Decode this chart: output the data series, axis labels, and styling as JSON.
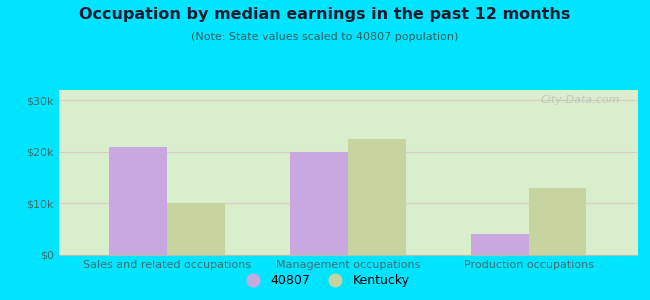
{
  "title": "Occupation by median earnings in the past 12 months",
  "subtitle": "(Note: State values scaled to 40807 population)",
  "categories": [
    "Sales and related occupations",
    "Management occupations",
    "Production occupations"
  ],
  "values_40807": [
    21000,
    20000,
    4000
  ],
  "values_kentucky": [
    10000,
    22500,
    13000
  ],
  "color_40807": "#c9a8e0",
  "color_kentucky": "#c8d4a0",
  "ylim": [
    0,
    32000
  ],
  "yticks": [
    0,
    10000,
    20000,
    30000
  ],
  "ytick_labels": [
    "$0",
    "$10k",
    "$20k",
    "$30k"
  ],
  "background_outer": "#00e5ff",
  "background_inner_top": "#e8f5e0",
  "background_inner_bottom": "#f8fff0",
  "bar_width": 0.32,
  "legend_labels": [
    "40807",
    "Kentucky"
  ],
  "watermark": "City-Data.com",
  "title_color": "#1a1a2e",
  "subtitle_color": "#2a6060",
  "tick_color": "#3a7070"
}
